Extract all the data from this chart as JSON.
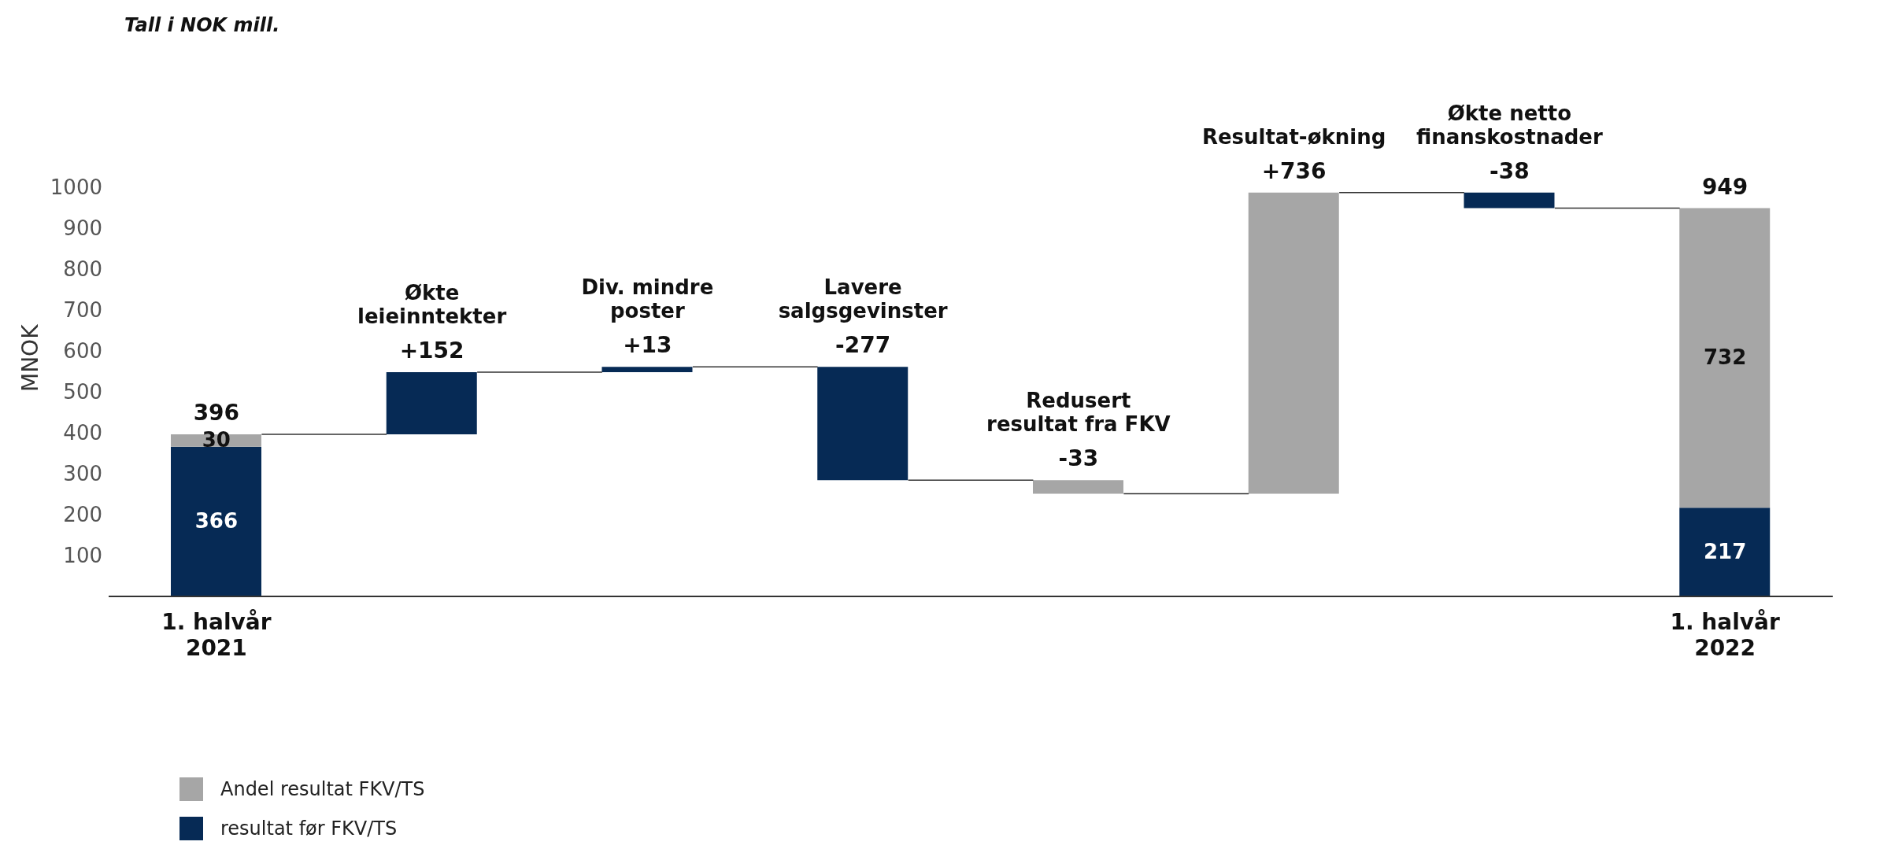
{
  "chart_data": {
    "type": "bar",
    "ylabel": "MNOK",
    "annotations": [
      "Tall i NOK mill."
    ],
    "categories": [
      "1. halvår 2021",
      "Økte leieinntekter",
      "Div. mindre poster",
      "Lavere salgsgevinster",
      "Redusert resultat fra FKV",
      "Resultat-økning",
      "Økte netto finanskostnader",
      "1. halvår 2022"
    ],
    "series": [
      {
        "name": "resultat før FKV/TS",
        "color": "#062a55",
        "values": [
          366,
          152,
          13,
          -277,
          null,
          null,
          -38,
          217
        ],
        "base": [
          0,
          396,
          548,
          561,
          null,
          null,
          987,
          0
        ],
        "value_labels": [
          "366",
          null,
          null,
          null,
          null,
          null,
          null,
          "217"
        ]
      },
      {
        "name": "Andel resultat FKV/TS",
        "color": "#a6a6a6",
        "values": [
          30,
          null,
          null,
          null,
          -33,
          736,
          null,
          732
        ],
        "base": [
          366,
          null,
          null,
          null,
          284,
          251,
          null,
          217
        ],
        "value_labels": [
          "30",
          null,
          null,
          null,
          null,
          null,
          null,
          "732"
        ]
      }
    ],
    "totals": [
      "396",
      "+152",
      "+13",
      "-277",
      "-33",
      "+736",
      "-38",
      "949"
    ],
    "ylim": [
      0,
      1000
    ],
    "yticks": [
      100,
      200,
      300,
      400,
      500,
      600,
      700,
      800,
      900,
      1000
    ],
    "legend": "bottom left"
  }
}
